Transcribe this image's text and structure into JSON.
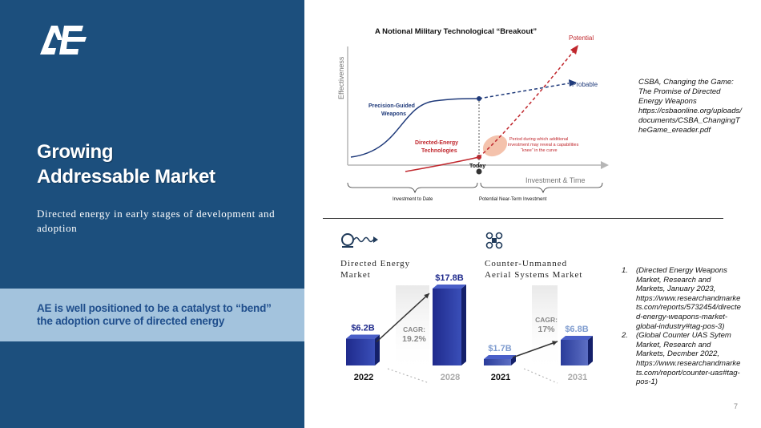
{
  "brand": {
    "logo_text": "AE"
  },
  "left": {
    "title_line1": "Growing",
    "title_line2": "Addressable Market",
    "subtitle": "Directed energy in early stages of development and adoption",
    "callout": "AE is well positioned to be a catalyst to “bend” the adoption curve of directed energy"
  },
  "notional_chart": {
    "title": "A Notional Military Technological “Breakout”",
    "y_label": "Effectiveness",
    "x_label": "Investment & Time",
    "pgw_label_1": "Precision-Guided",
    "pgw_label_2": "Weapons",
    "de_label_1": "Directed-Energy",
    "de_label_2": "Technologies",
    "potential": "Potential",
    "probable": "Probable",
    "today": "Today",
    "period_1": "Period during which additional",
    "period_2": "investment may reveal a capabilities",
    "period_3": "“knee” in the curve",
    "bracket_left": "Investment to Date",
    "bracket_right": "Potential Near-Term Investment",
    "colors": {
      "navy": "#1f3a7a",
      "red": "#c0272d",
      "knee": "#f2b79e"
    }
  },
  "citation": "CSBA, Changing the Game: The Promise of Directed Energy Weapons https://csbaonline.org/uploads/documents/CSBA_ChangingTheGame_ereader.pdf",
  "markets": {
    "de": {
      "label_line1": "Directed Energy",
      "label_line2": "Market"
    },
    "cuas": {
      "label_line1": "Counter-Unmanned",
      "label_line2": "Aerial Systems Market"
    }
  },
  "chart_data": [
    {
      "type": "bar",
      "title": "Directed Energy Market",
      "categories": [
        "2022",
        "2028"
      ],
      "values": [
        6.2,
        17.8
      ],
      "value_labels": [
        "$6.2B",
        "$17.8B"
      ],
      "cagr_label": "CAGR:",
      "cagr_value": "19.2%",
      "unit": "USD billions"
    },
    {
      "type": "bar",
      "title": "Counter-Unmanned Aerial Systems Market",
      "categories": [
        "2021",
        "2031"
      ],
      "values": [
        1.7,
        6.8
      ],
      "value_labels": [
        "$1.7B",
        "$6.8B"
      ],
      "cagr_label": "CAGR:",
      "cagr_value": "17%",
      "unit": "USD billions"
    }
  ],
  "references": [
    {
      "num": "1.",
      "text": "(Directed Energy Weapons Market, Research and Markets, January 2023, https://www.researchandmarkets.com/reports/5732454/directed-energy-weapons-market-global-industry#tag-pos-3)"
    },
    {
      "num": "2.",
      "text": "(Global Counter UAS Sytem Market, Research and Markets, Decmber 2022, https://www.researchandmarkets.com/report/counter-uas#tag-pos-1)"
    }
  ],
  "page_number": "7"
}
